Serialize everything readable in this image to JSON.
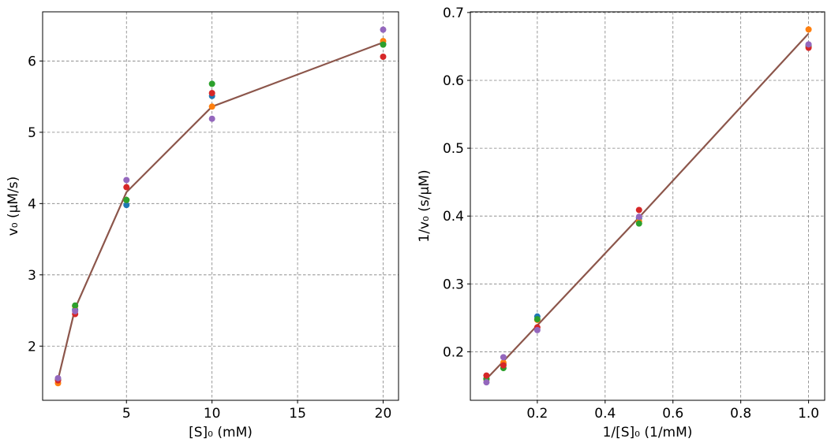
{
  "chart_data": [
    {
      "type": "scatter",
      "title": "",
      "xlabel": "[S]₀ (mM)",
      "ylabel": "v₀ (μM/s)",
      "xlim": [
        0.1,
        20.9
      ],
      "ylim": [
        1.24,
        6.69
      ],
      "xticks": [
        5,
        10,
        15,
        20
      ],
      "xtick_labels": [
        "5",
        "10",
        "15",
        "20"
      ],
      "yticks": [
        2,
        3,
        4,
        5,
        6
      ],
      "ytick_labels": [
        "2",
        "3",
        "4",
        "5",
        "6"
      ],
      "grid": true,
      "x": [
        1,
        2,
        5,
        10,
        20
      ],
      "series": [
        {
          "values": [
            1.53,
            2.51,
            3.98,
            5.51,
            6.24
          ],
          "color": "#1f77b4",
          "kind": "points"
        },
        {
          "values": [
            1.48,
            2.56,
            4.05,
            5.36,
            6.28
          ],
          "color": "#ff7f0e",
          "kind": "points"
        },
        {
          "values": [
            1.53,
            2.57,
            4.05,
            5.68,
            6.23
          ],
          "color": "#2ca02c",
          "kind": "points"
        },
        {
          "values": [
            1.52,
            2.45,
            4.23,
            5.55,
            6.06
          ],
          "color": "#d62728",
          "kind": "points"
        },
        {
          "values": [
            1.55,
            2.49,
            4.33,
            5.19,
            6.44
          ],
          "color": "#9467bd",
          "kind": "points"
        },
        {
          "values": [
            1.53,
            2.53,
            4.16,
            5.36,
            6.26
          ],
          "color": "#8c564b",
          "kind": "line"
        }
      ]
    },
    {
      "type": "scatter",
      "title": "",
      "xlabel": "1/[S]₀ (1/mM)",
      "ylabel": "1/v₀ (s/μM)",
      "xlim": [
        0.0025,
        1.0475
      ],
      "ylim": [
        0.1285,
        0.701
      ],
      "xticks": [
        0.2,
        0.4,
        0.6,
        0.8,
        1.0
      ],
      "xtick_labels": [
        "0.2",
        "0.4",
        "0.6",
        "0.8",
        "1.0"
      ],
      "yticks": [
        0.2,
        0.3,
        0.4,
        0.5,
        0.6,
        0.7
      ],
      "ytick_labels": [
        "0.2",
        "0.3",
        "0.4",
        "0.5",
        "0.6",
        "0.7"
      ],
      "grid": true,
      "x": [
        0.05,
        0.1,
        0.2,
        0.5,
        1.0
      ],
      "series": [
        {
          "values": [
            0.16,
            0.182,
            0.252,
            0.397,
            0.652
          ],
          "color": "#1f77b4",
          "kind": "points"
        },
        {
          "values": [
            0.159,
            0.184,
            0.247,
            0.392,
            0.675
          ],
          "color": "#ff7f0e",
          "kind": "points"
        },
        {
          "values": [
            0.16,
            0.176,
            0.248,
            0.389,
            0.65
          ],
          "color": "#2ca02c",
          "kind": "points"
        },
        {
          "values": [
            0.165,
            0.18,
            0.236,
            0.409,
            0.648
          ],
          "color": "#d62728",
          "kind": "points"
        },
        {
          "values": [
            0.155,
            0.192,
            0.232,
            0.399,
            0.653
          ],
          "color": "#9467bd",
          "kind": "points"
        },
        {
          "values": [
            0.16,
            0.186,
            0.239,
            0.398,
            0.669
          ],
          "color": "#8c564b",
          "kind": "line"
        }
      ]
    }
  ]
}
